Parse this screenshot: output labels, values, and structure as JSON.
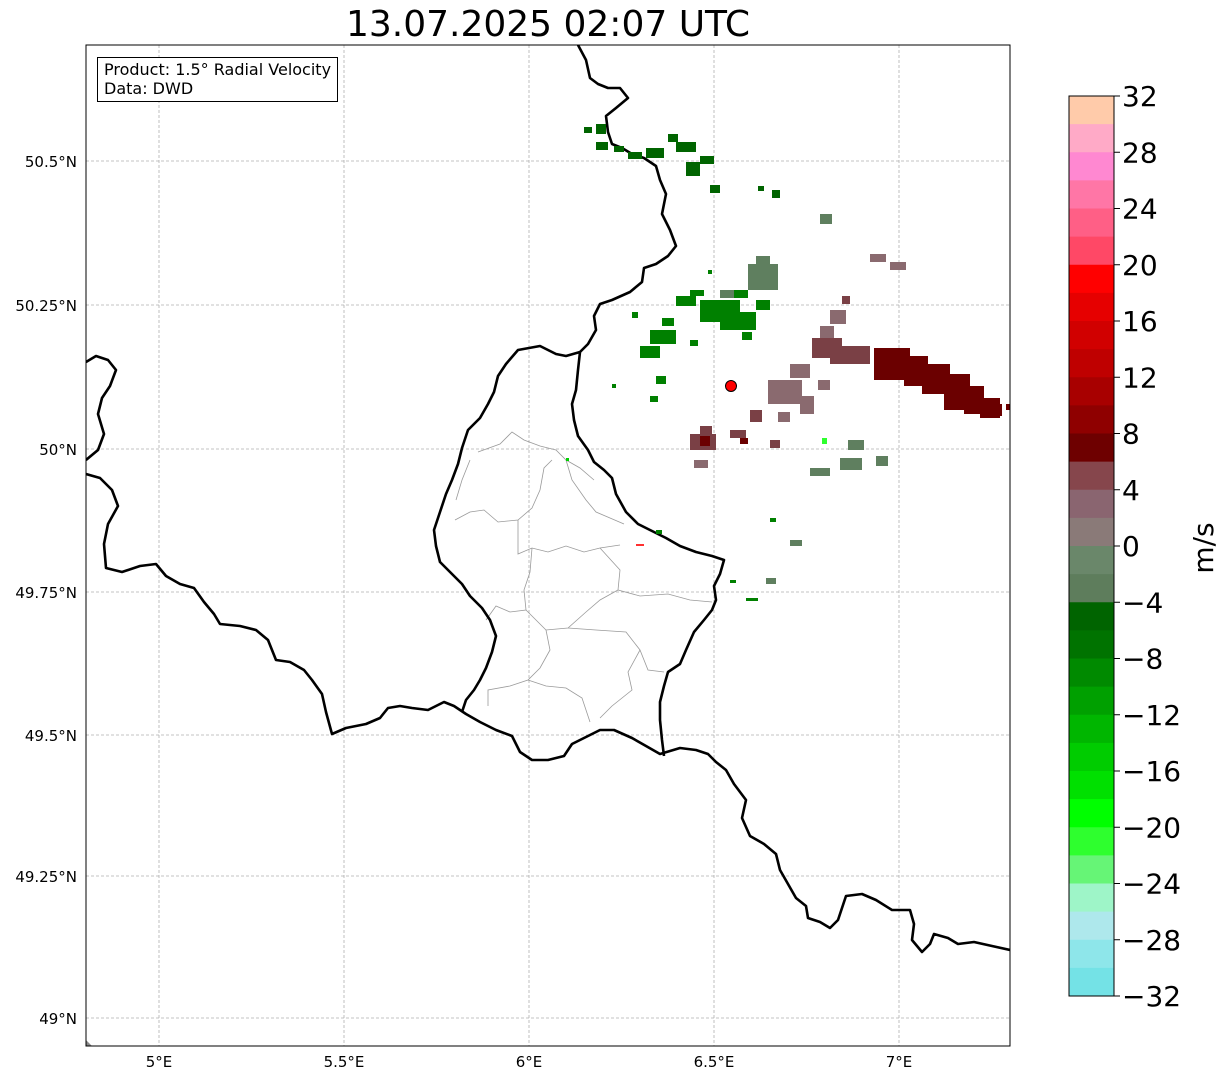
{
  "title": "13.07.2025 02:07 UTC",
  "info_box": {
    "product": "Product: 1.5° Radial Velocity",
    "source": "Data: DWD"
  },
  "map": {
    "lon_ticks": [
      "5°E",
      "5.5°E",
      "6°E",
      "6.5°E",
      "7°E"
    ],
    "lat_ticks": [
      "50.5°N",
      "50.25°N",
      "50°N",
      "49.75°N",
      "49.5°N",
      "49.25°N",
      "49°N"
    ],
    "radar_site_color": "#ff0000",
    "echo_colors": {
      "inbound_strong": "#006400",
      "inbound": "#008000",
      "near_zero_green": "#5f7f5f",
      "near_zero_brown": "#8a6a6f",
      "outbound_moderate": "#7a4045",
      "outbound_strong": "#6b0000"
    }
  },
  "colorbar": {
    "unit": "m/s",
    "min": -32,
    "max": 32,
    "tick_labels": [
      "32",
      "28",
      "24",
      "20",
      "16",
      "12",
      "8",
      "4",
      "0",
      "−4",
      "−8",
      "−12",
      "−16",
      "−20",
      "−24",
      "−28",
      "−32"
    ],
    "colors_top_to_bottom": [
      "#ffcbaa",
      "#ffaac7",
      "#ff88d1",
      "#ff76a6",
      "#ff5f86",
      "#ff4866",
      "#ff0000",
      "#e60000",
      "#d10000",
      "#bf0000",
      "#a80000",
      "#8f0000",
      "#6e0000",
      "#86464c",
      "#8a6570",
      "#8a7a78",
      "#6a876a",
      "#5e7d5c",
      "#006400",
      "#007300",
      "#008a00",
      "#00a000",
      "#00b600",
      "#00cc00",
      "#00e000",
      "#00ff00",
      "#2eff2e",
      "#66f576",
      "#9ef5c8",
      "#aee8ec",
      "#8ee6ea",
      "#74e2e6"
    ]
  }
}
